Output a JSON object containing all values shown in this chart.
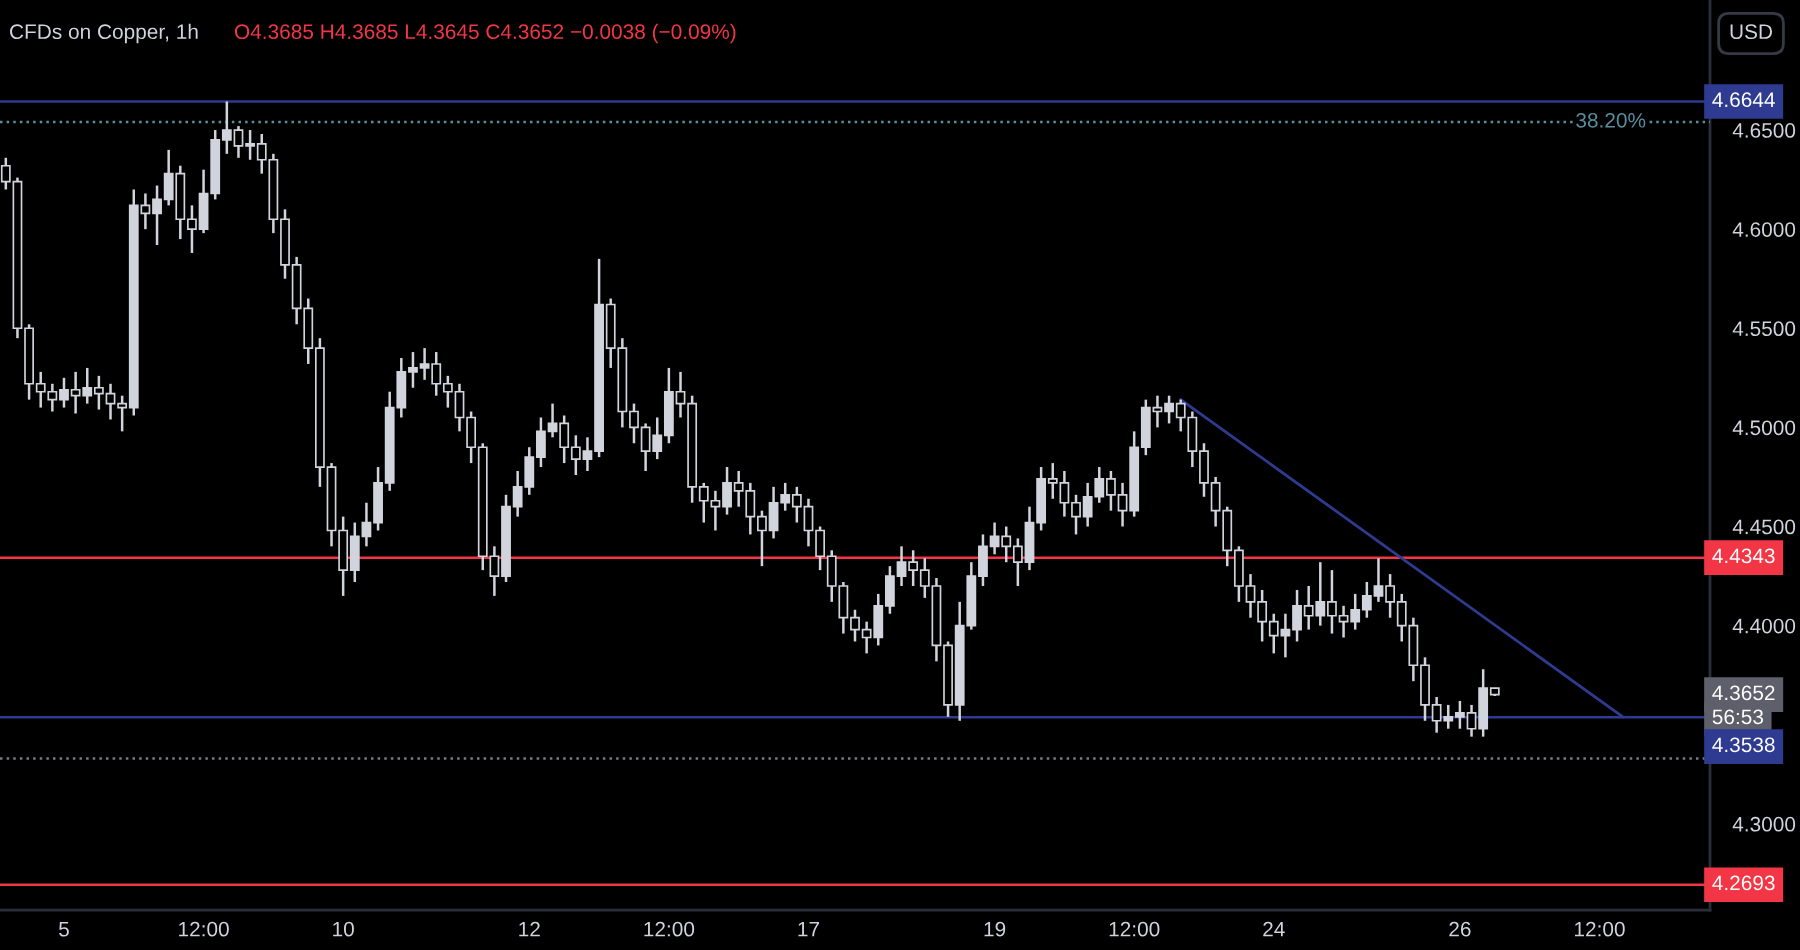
{
  "chart_data": {
    "type": "candlestick",
    "title": "CFDs on Copper, 1h",
    "subtitle": "O4.3685 H4.3685 L4.3645 C4.3652 −0.0038 (−0.09%)",
    "color": "#d1d4dc",
    "categories": [
      null,
      null,
      null,
      null,
      null,
      "5",
      null,
      null,
      null,
      null,
      null,
      null,
      null,
      null,
      null,
      null,
      null,
      "12:00",
      null,
      null,
      null,
      null,
      null,
      null,
      null,
      null,
      null,
      null,
      null,
      "10",
      null,
      null,
      null,
      null,
      null,
      null,
      null,
      null,
      null,
      null,
      null,
      null,
      null,
      null,
      null,
      "12",
      null,
      null,
      null,
      null,
      null,
      null,
      null,
      null,
      null,
      null,
      null,
      "12:00",
      null,
      null,
      null,
      null,
      null,
      null,
      null,
      null,
      null,
      null,
      null,
      "17",
      null,
      null,
      null,
      null,
      null,
      null,
      null,
      null,
      null,
      null,
      null,
      null,
      null,
      null,
      null,
      "19",
      null,
      null,
      null,
      null,
      null,
      null,
      null,
      null,
      null,
      null,
      null,
      "12:00",
      null,
      null,
      null,
      null,
      null,
      null,
      null,
      null,
      null,
      null,
      null,
      "24",
      null,
      null,
      null,
      null,
      null,
      null,
      null,
      null,
      null,
      null,
      null,
      null,
      null,
      null,
      null,
      "26",
      null,
      null,
      null,
      null,
      null,
      null,
      null,
      null,
      null,
      null,
      null,
      "12:00",
      null,
      null,
      null,
      null,
      null,
      null,
      null,
      null,
      null
    ],
    "ohlc": [
      [
        4.632,
        4.636,
        4.62,
        4.624
      ],
      [
        4.624,
        4.626,
        4.545,
        4.55
      ],
      [
        4.55,
        4.552,
        4.514,
        4.522
      ],
      [
        4.522,
        4.528,
        4.51,
        4.518
      ],
      [
        4.518,
        4.522,
        4.508,
        4.514
      ],
      [
        4.514,
        4.525,
        4.51,
        4.519
      ],
      [
        4.519,
        4.528,
        4.507,
        4.516
      ],
      [
        4.516,
        4.53,
        4.512,
        4.52
      ],
      [
        4.52,
        4.526,
        4.509,
        4.517
      ],
      [
        4.517,
        4.522,
        4.504,
        4.512
      ],
      [
        4.512,
        4.516,
        4.498,
        4.51
      ],
      [
        4.51,
        4.62,
        4.506,
        4.612
      ],
      [
        4.612,
        4.618,
        4.6,
        4.608
      ],
      [
        4.608,
        4.622,
        4.592,
        4.615
      ],
      [
        4.615,
        4.64,
        4.612,
        4.628
      ],
      [
        4.628,
        4.632,
        4.595,
        4.605
      ],
      [
        4.605,
        4.612,
        4.588,
        4.6
      ],
      [
        4.6,
        4.63,
        4.598,
        4.618
      ],
      [
        4.618,
        4.65,
        4.615,
        4.645
      ],
      [
        4.645,
        4.6644,
        4.638,
        4.65
      ],
      [
        4.65,
        4.652,
        4.636,
        4.642
      ],
      [
        4.642,
        4.65,
        4.635,
        4.643
      ],
      [
        4.643,
        4.648,
        4.628,
        4.635
      ],
      [
        4.635,
        4.638,
        4.598,
        4.605
      ],
      [
        4.605,
        4.61,
        4.575,
        4.582
      ],
      [
        4.582,
        4.586,
        4.552,
        4.56
      ],
      [
        4.56,
        4.565,
        4.532,
        4.54
      ],
      [
        4.54,
        4.545,
        4.47,
        4.48
      ],
      [
        4.48,
        4.482,
        4.44,
        4.448
      ],
      [
        4.448,
        4.455,
        4.415,
        4.428
      ],
      [
        4.428,
        4.452,
        4.422,
        4.445
      ],
      [
        4.445,
        4.462,
        4.44,
        4.452
      ],
      [
        4.452,
        4.48,
        4.448,
        4.472
      ],
      [
        4.472,
        4.518,
        4.468,
        4.51
      ],
      [
        4.51,
        4.535,
        4.505,
        4.528
      ],
      [
        4.528,
        4.538,
        4.52,
        4.53
      ],
      [
        4.53,
        4.54,
        4.524,
        4.532
      ],
      [
        4.532,
        4.538,
        4.516,
        4.522
      ],
      [
        4.522,
        4.526,
        4.51,
        4.518
      ],
      [
        4.518,
        4.522,
        4.498,
        4.505
      ],
      [
        4.505,
        4.508,
        4.482,
        4.49
      ],
      [
        4.49,
        4.492,
        4.428,
        4.435
      ],
      [
        4.435,
        4.44,
        4.415,
        4.425
      ],
      [
        4.425,
        4.466,
        4.422,
        4.46
      ],
      [
        4.46,
        4.478,
        4.455,
        4.47
      ],
      [
        4.47,
        4.49,
        4.466,
        4.485
      ],
      [
        4.485,
        4.505,
        4.48,
        4.498
      ],
      [
        4.498,
        4.512,
        4.495,
        4.502
      ],
      [
        4.502,
        4.506,
        4.482,
        4.49
      ],
      [
        4.49,
        4.496,
        4.476,
        4.484
      ],
      [
        4.484,
        4.495,
        4.478,
        4.488
      ],
      [
        4.488,
        4.585,
        4.485,
        4.562
      ],
      [
        4.562,
        4.565,
        4.53,
        4.54
      ],
      [
        4.54,
        4.545,
        4.5,
        4.508
      ],
      [
        4.508,
        4.512,
        4.492,
        4.5
      ],
      [
        4.5,
        4.502,
        4.478,
        4.488
      ],
      [
        4.488,
        4.505,
        4.484,
        4.496
      ],
      [
        4.496,
        4.53,
        4.492,
        4.518
      ],
      [
        4.518,
        4.528,
        4.505,
        4.512
      ],
      [
        4.512,
        4.516,
        4.462,
        4.47
      ],
      [
        4.47,
        4.472,
        4.452,
        4.463
      ],
      [
        4.463,
        4.468,
        4.448,
        4.46
      ],
      [
        4.46,
        4.48,
        4.456,
        4.472
      ],
      [
        4.472,
        4.478,
        4.46,
        4.468
      ],
      [
        4.468,
        4.472,
        4.446,
        4.455
      ],
      [
        4.455,
        4.458,
        4.43,
        4.448
      ],
      [
        4.448,
        4.47,
        4.444,
        4.462
      ],
      [
        4.462,
        4.472,
        4.458,
        4.466
      ],
      [
        4.466,
        4.47,
        4.452,
        4.46
      ],
      [
        4.46,
        4.464,
        4.44,
        4.448
      ],
      [
        4.448,
        4.45,
        4.428,
        4.435
      ],
      [
        4.435,
        4.438,
        4.412,
        4.42
      ],
      [
        4.42,
        4.422,
        4.396,
        4.404
      ],
      [
        4.404,
        4.408,
        4.392,
        4.398
      ],
      [
        4.398,
        4.402,
        4.386,
        4.394
      ],
      [
        4.394,
        4.416,
        4.39,
        4.41
      ],
      [
        4.41,
        4.43,
        4.406,
        4.425
      ],
      [
        4.425,
        4.44,
        4.42,
        4.432
      ],
      [
        4.432,
        4.438,
        4.42,
        4.428
      ],
      [
        4.428,
        4.434,
        4.414,
        4.42
      ],
      [
        4.42,
        4.424,
        4.382,
        4.39
      ],
      [
        4.39,
        4.392,
        4.354,
        4.36
      ],
      [
        4.36,
        4.412,
        4.352,
        4.4
      ],
      [
        4.4,
        4.432,
        4.398,
        4.425
      ],
      [
        4.425,
        4.446,
        4.42,
        4.44
      ],
      [
        4.44,
        4.452,
        4.436,
        4.445
      ],
      [
        4.445,
        4.45,
        4.432,
        4.44
      ],
      [
        4.44,
        4.444,
        4.42,
        4.432
      ],
      [
        4.432,
        4.46,
        4.428,
        4.452
      ],
      [
        4.452,
        4.48,
        4.448,
        4.474
      ],
      [
        4.474,
        4.482,
        4.464,
        4.472
      ],
      [
        4.472,
        4.478,
        4.455,
        4.462
      ],
      [
        4.462,
        4.466,
        4.446,
        4.455
      ],
      [
        4.455,
        4.472,
        4.45,
        4.465
      ],
      [
        4.465,
        4.48,
        4.462,
        4.474
      ],
      [
        4.474,
        4.478,
        4.458,
        4.466
      ],
      [
        4.466,
        4.472,
        4.45,
        4.458
      ],
      [
        4.458,
        4.498,
        4.455,
        4.49
      ],
      [
        4.49,
        4.514,
        4.486,
        4.51
      ],
      [
        4.51,
        4.516,
        4.5,
        4.508
      ],
      [
        4.508,
        4.516,
        4.502,
        4.512
      ],
      [
        4.512,
        4.514,
        4.498,
        4.505
      ],
      [
        4.505,
        4.508,
        4.48,
        4.488
      ],
      [
        4.488,
        4.492,
        4.465,
        4.472
      ],
      [
        4.472,
        4.475,
        4.45,
        4.458
      ],
      [
        4.458,
        4.46,
        4.43,
        4.438
      ],
      [
        4.438,
        4.44,
        4.412,
        4.42
      ],
      [
        4.42,
        4.426,
        4.404,
        4.412
      ],
      [
        4.412,
        4.418,
        4.392,
        4.402
      ],
      [
        4.402,
        4.406,
        4.386,
        4.395
      ],
      [
        4.395,
        4.406,
        4.384,
        4.398
      ],
      [
        4.398,
        4.418,
        4.392,
        4.41
      ],
      [
        4.41,
        4.42,
        4.398,
        4.405
      ],
      [
        4.405,
        4.432,
        4.4,
        4.412
      ],
      [
        4.412,
        4.428,
        4.396,
        4.405
      ],
      [
        4.405,
        4.41,
        4.394,
        4.402
      ],
      [
        4.402,
        4.416,
        4.398,
        4.408
      ],
      [
        4.408,
        4.422,
        4.404,
        4.415
      ],
      [
        4.415,
        4.434,
        4.412,
        4.42
      ],
      [
        4.42,
        4.426,
        4.404,
        4.412
      ],
      [
        4.412,
        4.416,
        4.392,
        4.4
      ],
      [
        4.4,
        4.404,
        4.372,
        4.38
      ],
      [
        4.38,
        4.384,
        4.352,
        4.36
      ],
      [
        4.36,
        4.364,
        4.346,
        4.352
      ],
      [
        4.352,
        4.36,
        4.348,
        4.354
      ],
      [
        4.354,
        4.362,
        4.348,
        4.356
      ],
      [
        4.356,
        4.36,
        4.344,
        4.348
      ],
      [
        4.348,
        4.378,
        4.344,
        4.3685
      ],
      [
        4.3685,
        4.3685,
        4.3645,
        4.3652
      ],
      null,
      null,
      null,
      null,
      null,
      null,
      null,
      null,
      null,
      null,
      null,
      null,
      null,
      null,
      null,
      null,
      null,
      null
    ],
    "series": [
      {
        "type": "line",
        "color": "#2e3b91",
        "values": [
          null,
          null,
          null,
          null,
          null,
          null,
          null,
          null,
          null,
          null,
          null,
          null,
          null,
          null,
          null,
          null,
          null,
          null,
          null,
          null,
          null,
          null,
          null,
          null,
          null,
          null,
          null,
          null,
          null,
          null,
          null,
          null,
          null,
          null,
          null,
          null,
          null,
          null,
          null,
          null,
          null,
          null,
          null,
          null,
          null,
          null,
          null,
          null,
          null,
          null,
          null,
          null,
          null,
          null,
          null,
          null,
          null,
          null,
          null,
          null,
          null,
          null,
          null,
          null,
          null,
          null,
          null,
          null,
          null,
          null,
          null,
          null,
          null,
          null,
          null,
          null,
          null,
          null,
          null,
          null,
          null,
          null,
          null,
          null,
          null,
          null,
          null,
          null,
          null,
          null,
          null,
          null,
          null,
          null,
          null,
          null,
          null,
          null,
          null,
          null,
          null,
          4.514,
          null,
          null,
          null,
          null,
          null,
          null,
          null,
          null,
          null,
          null,
          null,
          null,
          null,
          null,
          null,
          null,
          null,
          null,
          null,
          null,
          null,
          null,
          null,
          null,
          null,
          null,
          null,
          null,
          null,
          null,
          null,
          null,
          null,
          null,
          null,
          null,
          null,
          4.354,
          null,
          null,
          null,
          null,
          null,
          null,
          null
        ]
      }
    ],
    "ylim": [
      4.2565,
      4.7156
    ],
    "yticks": [
      {
        "value": 4.3,
        "label": "4.3000"
      },
      {
        "value": 4.4,
        "label": "4.4000"
      },
      {
        "value": 4.45,
        "label": "4.4500"
      },
      {
        "value": 4.5,
        "label": "4.5000"
      },
      {
        "value": 4.55,
        "label": "4.5500"
      },
      {
        "value": 4.6,
        "label": "4.6000"
      },
      {
        "value": 4.65,
        "label": "4.6500"
      }
    ],
    "ref_lines": [
      {
        "axis": "y",
        "value": 4.6644,
        "label": "4.6644",
        "color": "#2e3b91",
        "line_style": "solid"
      },
      {
        "axis": "y",
        "value": 4.654,
        "label": null,
        "color": "#5a8fa0",
        "line_style": "dotted"
      },
      {
        "axis": "y",
        "value": 4.4343,
        "label": "4.4343",
        "color": "#f23645",
        "line_style": "solid"
      },
      {
        "axis": "y",
        "value": 4.3538,
        "label": "4.3538",
        "color": "#2e3b91",
        "line_style": "solid"
      },
      {
        "axis": "y",
        "value": 4.333,
        "label": null,
        "color": "#787b86",
        "line_style": "dotted"
      },
      {
        "axis": "y",
        "value": 4.2693,
        "label": "4.2693",
        "color": "#f23645",
        "line_style": "solid"
      }
    ],
    "annotations": [
      {
        "text": "38.20%",
        "y": 4.654
      },
      "4.3652",
      "56:53",
      "USD"
    ],
    "grid": false
  }
}
